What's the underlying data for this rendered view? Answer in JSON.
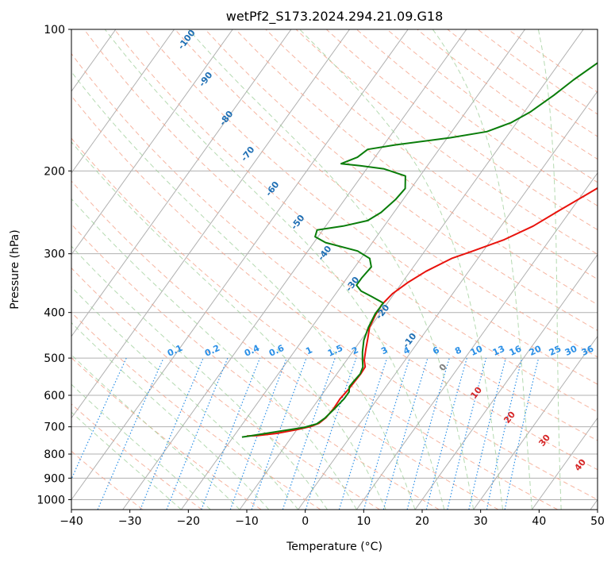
{
  "chart_data": {
    "type": "line",
    "title": "wetPf2_S173.2024.294.21.09.G18",
    "xlabel": "Temperature (°C)",
    "ylabel": "Pressure (hPa)",
    "xlim": [
      -40,
      50
    ],
    "ylim": [
      1050,
      100
    ],
    "y_scale": "log",
    "x_ticks": [
      -40,
      -30,
      -20,
      -10,
      0,
      10,
      20,
      30,
      40,
      50
    ],
    "y_ticks": [
      1000,
      900,
      800,
      700,
      600,
      500,
      400,
      300,
      200,
      100
    ],
    "grid": true,
    "series": [
      {
        "color": "#e8120c",
        "points": [
          [
            -17.8,
            732
          ],
          [
            -16,
            731
          ],
          [
            -13,
            723
          ],
          [
            -10,
            710
          ],
          [
            -8,
            699
          ],
          [
            -7,
            688
          ],
          [
            -6.5,
            670
          ],
          [
            -6.3,
            640
          ],
          [
            -6.4,
            610
          ],
          [
            -6.1,
            583
          ],
          [
            -6.0,
            560
          ],
          [
            -5.9,
            540
          ],
          [
            -6.0,
            522
          ],
          [
            -7.0,
            505
          ],
          [
            -8.0,
            480
          ],
          [
            -9.0,
            455
          ],
          [
            -10.1,
            430
          ],
          [
            -10.6,
            405
          ],
          [
            -10.8,
            385
          ],
          [
            -10.3,
            365
          ],
          [
            -9.0,
            345
          ],
          [
            -7.3,
            327
          ],
          [
            -4.5,
            307
          ],
          [
            -2.0,
            297
          ],
          [
            2.2,
            280
          ],
          [
            5.5,
            262
          ],
          [
            8.0,
            243
          ],
          [
            11.0,
            223
          ],
          [
            14.5,
            201
          ],
          [
            17.5,
            187
          ],
          [
            20.5,
            170
          ],
          [
            23.5,
            151
          ],
          [
            26.5,
            134
          ],
          [
            28.5,
            121
          ],
          [
            30.0,
            111
          ],
          [
            31.0,
            104
          ],
          [
            31.7,
            100
          ]
        ]
      },
      {
        "color": "#0a7d0a",
        "points": [
          [
            -18.5,
            736
          ],
          [
            -17.5,
            733
          ],
          [
            -14,
            720
          ],
          [
            -9,
            702
          ],
          [
            -7.3,
            690
          ],
          [
            -6.6,
            670
          ],
          [
            -6.1,
            640
          ],
          [
            -5.7,
            610
          ],
          [
            -5.7,
            590
          ],
          [
            -6.3,
            575
          ],
          [
            -6.2,
            560
          ],
          [
            -6.0,
            540
          ],
          [
            -6.4,
            522
          ],
          [
            -7.3,
            505
          ],
          [
            -8.3,
            485
          ],
          [
            -9.5,
            458
          ],
          [
            -10.3,
            430
          ],
          [
            -10.8,
            402
          ],
          [
            -10.7,
            382
          ],
          [
            -13.5,
            370
          ],
          [
            -16.0,
            360
          ],
          [
            -17.5,
            350
          ],
          [
            -17.5,
            338
          ],
          [
            -17.2,
            320
          ],
          [
            -18.5,
            307
          ],
          [
            -21.5,
            296
          ],
          [
            -28,
            284
          ],
          [
            -30.5,
            276
          ],
          [
            -31.0,
            267
          ],
          [
            -27.0,
            262
          ],
          [
            -23.5,
            255
          ],
          [
            -22.2,
            245
          ],
          [
            -21.3,
            230
          ],
          [
            -21.0,
            218
          ],
          [
            -22.5,
            205
          ],
          [
            -27.0,
            198
          ],
          [
            -31.5,
            195
          ],
          [
            -35.0,
            193
          ],
          [
            -33.0,
            187
          ],
          [
            -32.2,
            180
          ],
          [
            -28.0,
            176
          ],
          [
            -19.5,
            170
          ],
          [
            -14.0,
            165
          ],
          [
            -11.0,
            158
          ],
          [
            -9.0,
            150
          ],
          [
            -7.0,
            138
          ],
          [
            -5.5,
            128
          ],
          [
            -3.5,
            118
          ],
          [
            -1.0,
            108
          ],
          [
            1.0,
            100
          ]
        ]
      }
    ],
    "mixing_ratio_labels": [
      "0.1",
      "0.2",
      "0.4",
      "0.6",
      "1",
      "1.5",
      "2",
      "3",
      "4",
      "6",
      "8",
      "10",
      "13",
      "16",
      "20",
      "25",
      "30",
      "36"
    ],
    "dry_adiabat_labels": [
      "-100",
      "-90",
      "-80",
      "-70",
      "-60",
      "-50",
      "-40",
      "-30",
      "-20",
      "-10",
      "0"
    ],
    "moist_adiabat_labels": [
      "10",
      "20",
      "30",
      "40"
    ]
  },
  "colors": {
    "isotherm": "#b0b0b0",
    "isobar": "#b0b0b0",
    "dry_adiabat": "#f4a28a",
    "moist_adiabat": "#9ccd97",
    "mixing_ratio": "#2a8fe6",
    "temperature": "#e8120c",
    "dewpoint": "#0a7d0a"
  }
}
